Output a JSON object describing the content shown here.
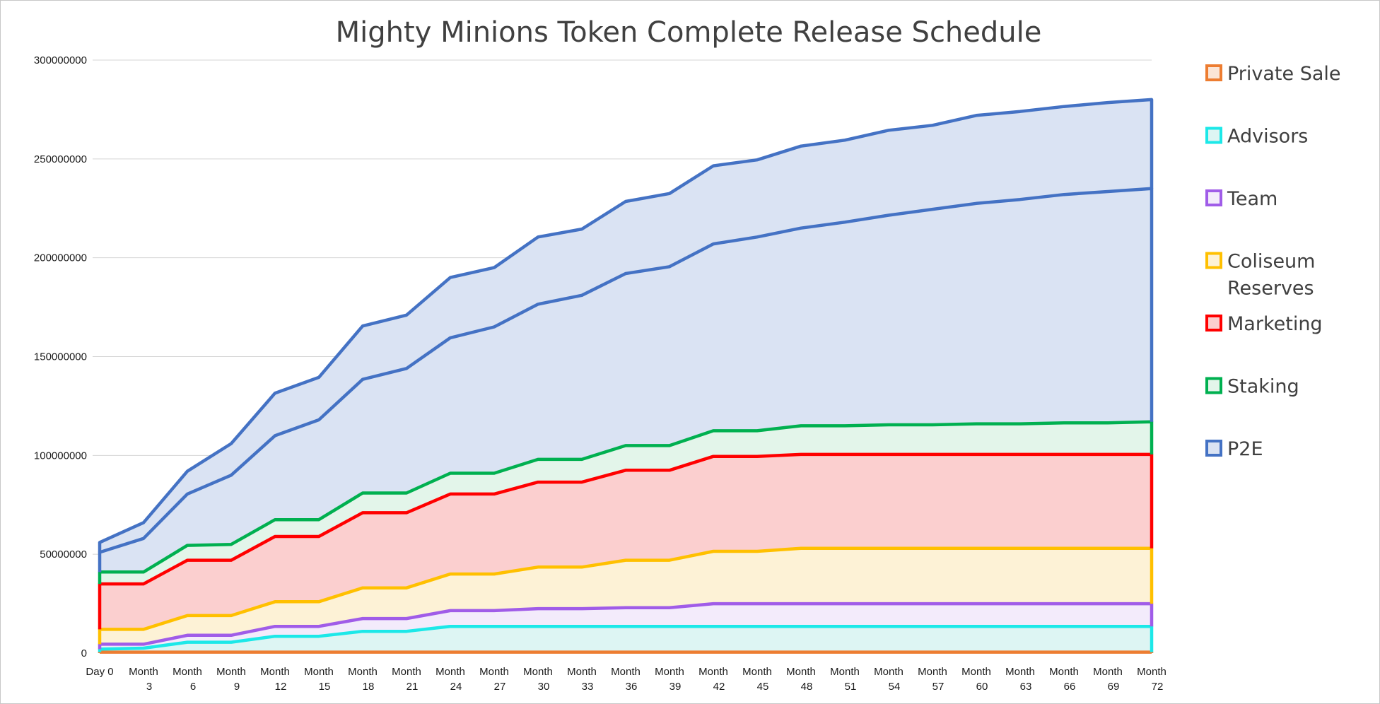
{
  "chart_data": {
    "type": "area",
    "stacked": true,
    "title": "Mighty Minions Token Complete Release Schedule",
    "xlabel": "",
    "ylabel": "",
    "ylim": [
      0,
      300000000
    ],
    "yticks": [
      0,
      50000000,
      100000000,
      150000000,
      200000000,
      250000000,
      300000000
    ],
    "ytick_labels": [
      "0",
      "50000000",
      "100000000",
      "150000000",
      "200000000",
      "250000000",
      "300000000"
    ],
    "grid": true,
    "legend_position": "right",
    "categories": [
      [
        "Day 0",
        ""
      ],
      [
        "Month",
        "3"
      ],
      [
        "Month",
        "6"
      ],
      [
        "Month",
        "9"
      ],
      [
        "Month",
        "12"
      ],
      [
        "Month",
        "15"
      ],
      [
        "Month",
        "18"
      ],
      [
        "Month",
        "21"
      ],
      [
        "Month",
        "24"
      ],
      [
        "Month",
        "27"
      ],
      [
        "Month",
        "30"
      ],
      [
        "Month",
        "33"
      ],
      [
        "Month",
        "36"
      ],
      [
        "Month",
        "39"
      ],
      [
        "Month",
        "42"
      ],
      [
        "Month",
        "45"
      ],
      [
        "Month",
        "48"
      ],
      [
        "Month",
        "51"
      ],
      [
        "Month",
        "54"
      ],
      [
        "Month",
        "57"
      ],
      [
        "Month",
        "60"
      ],
      [
        "Month",
        "63"
      ],
      [
        "Month",
        "66"
      ],
      [
        "Month",
        "69"
      ],
      [
        "Month",
        "72"
      ]
    ],
    "series": [
      {
        "name": "Private Sale",
        "line_color": "#ED7D31",
        "fill_color": "#FBE5D6",
        "cumulative": [
          500000,
          500000,
          500000,
          500000,
          500000,
          500000,
          500000,
          500000,
          500000,
          500000,
          500000,
          500000,
          500000,
          500000,
          500000,
          500000,
          500000,
          500000,
          500000,
          500000,
          500000,
          500000,
          500000,
          500000,
          500000
        ]
      },
      {
        "name": "Advisors",
        "line_color": "#1CE8E8",
        "fill_color": "#DDF5F3",
        "cumulative": [
          2000000,
          2500000,
          5500000,
          5500000,
          8500000,
          8500000,
          11000000,
          11000000,
          13500000,
          13500000,
          13500000,
          13500000,
          13500000,
          13500000,
          13500000,
          13500000,
          13500000,
          13500000,
          13500000,
          13500000,
          13500000,
          13500000,
          13500000,
          13500000,
          13500000
        ]
      },
      {
        "name": "Team",
        "line_color": "#A05CE8",
        "fill_color": "#F3EBFB",
        "cumulative": [
          4500000,
          4500000,
          9000000,
          9000000,
          13500000,
          13500000,
          17500000,
          17500000,
          21500000,
          21500000,
          22500000,
          22500000,
          23000000,
          23000000,
          25000000,
          25000000,
          25000000,
          25000000,
          25000000,
          25000000,
          25000000,
          25000000,
          25000000,
          25000000,
          25000000
        ]
      },
      {
        "name": "Coliseum Reserves",
        "label_lines": [
          "Coliseum",
          "Reserves"
        ],
        "line_color": "#FFC000",
        "fill_color": "#FDF2D6",
        "cumulative": [
          12000000,
          12000000,
          19000000,
          19000000,
          26000000,
          26000000,
          33000000,
          33000000,
          40000000,
          40000000,
          43500000,
          43500000,
          47000000,
          47000000,
          51500000,
          51500000,
          53000000,
          53000000,
          53000000,
          53000000,
          53000000,
          53000000,
          53000000,
          53000000,
          53000000
        ]
      },
      {
        "name": "Marketing",
        "line_color": "#FF0000",
        "fill_color": "#FBCFCF",
        "cumulative": [
          35000000,
          35000000,
          47000000,
          47000000,
          59000000,
          59000000,
          71000000,
          71000000,
          80500000,
          80500000,
          86500000,
          86500000,
          92500000,
          92500000,
          99500000,
          99500000,
          100500000,
          100500000,
          100500000,
          100500000,
          100500000,
          100500000,
          100500000,
          100500000,
          100500000
        ]
      },
      {
        "name": "Staking",
        "line_color": "#00B050",
        "fill_color": "#E3F5EA",
        "cumulative": [
          41000000,
          41000000,
          54500000,
          55000000,
          67500000,
          67500000,
          81000000,
          81000000,
          91000000,
          91000000,
          98000000,
          98000000,
          105000000,
          105000000,
          112500000,
          112500000,
          115000000,
          115000000,
          115500000,
          115500000,
          116000000,
          116000000,
          116500000,
          116500000,
          117000000
        ]
      },
      {
        "name": "P2E",
        "line_color": "#4472C4",
        "fill_color": "#DAE3F3",
        "cumulative": [
          51000000,
          58000000,
          80500000,
          90000000,
          110000000,
          118000000,
          138500000,
          144000000,
          159500000,
          165000000,
          176500000,
          181000000,
          192000000,
          195500000,
          207000000,
          210500000,
          215000000,
          218000000,
          221500000,
          224500000,
          227500000,
          229500000,
          232000000,
          233500000,
          235000000
        ]
      }
    ],
    "top_envelope": {
      "line_color": "#4472C4",
      "fill_color": "#DAE3F3",
      "cumulative": [
        56000000,
        66000000,
        92000000,
        106000000,
        131500000,
        139500000,
        165500000,
        171000000,
        190000000,
        195000000,
        210500000,
        214500000,
        228500000,
        232500000,
        246500000,
        249500000,
        256500000,
        259500000,
        264500000,
        267000000,
        272000000,
        274000000,
        276500000,
        278500000,
        280000000
      ]
    }
  }
}
